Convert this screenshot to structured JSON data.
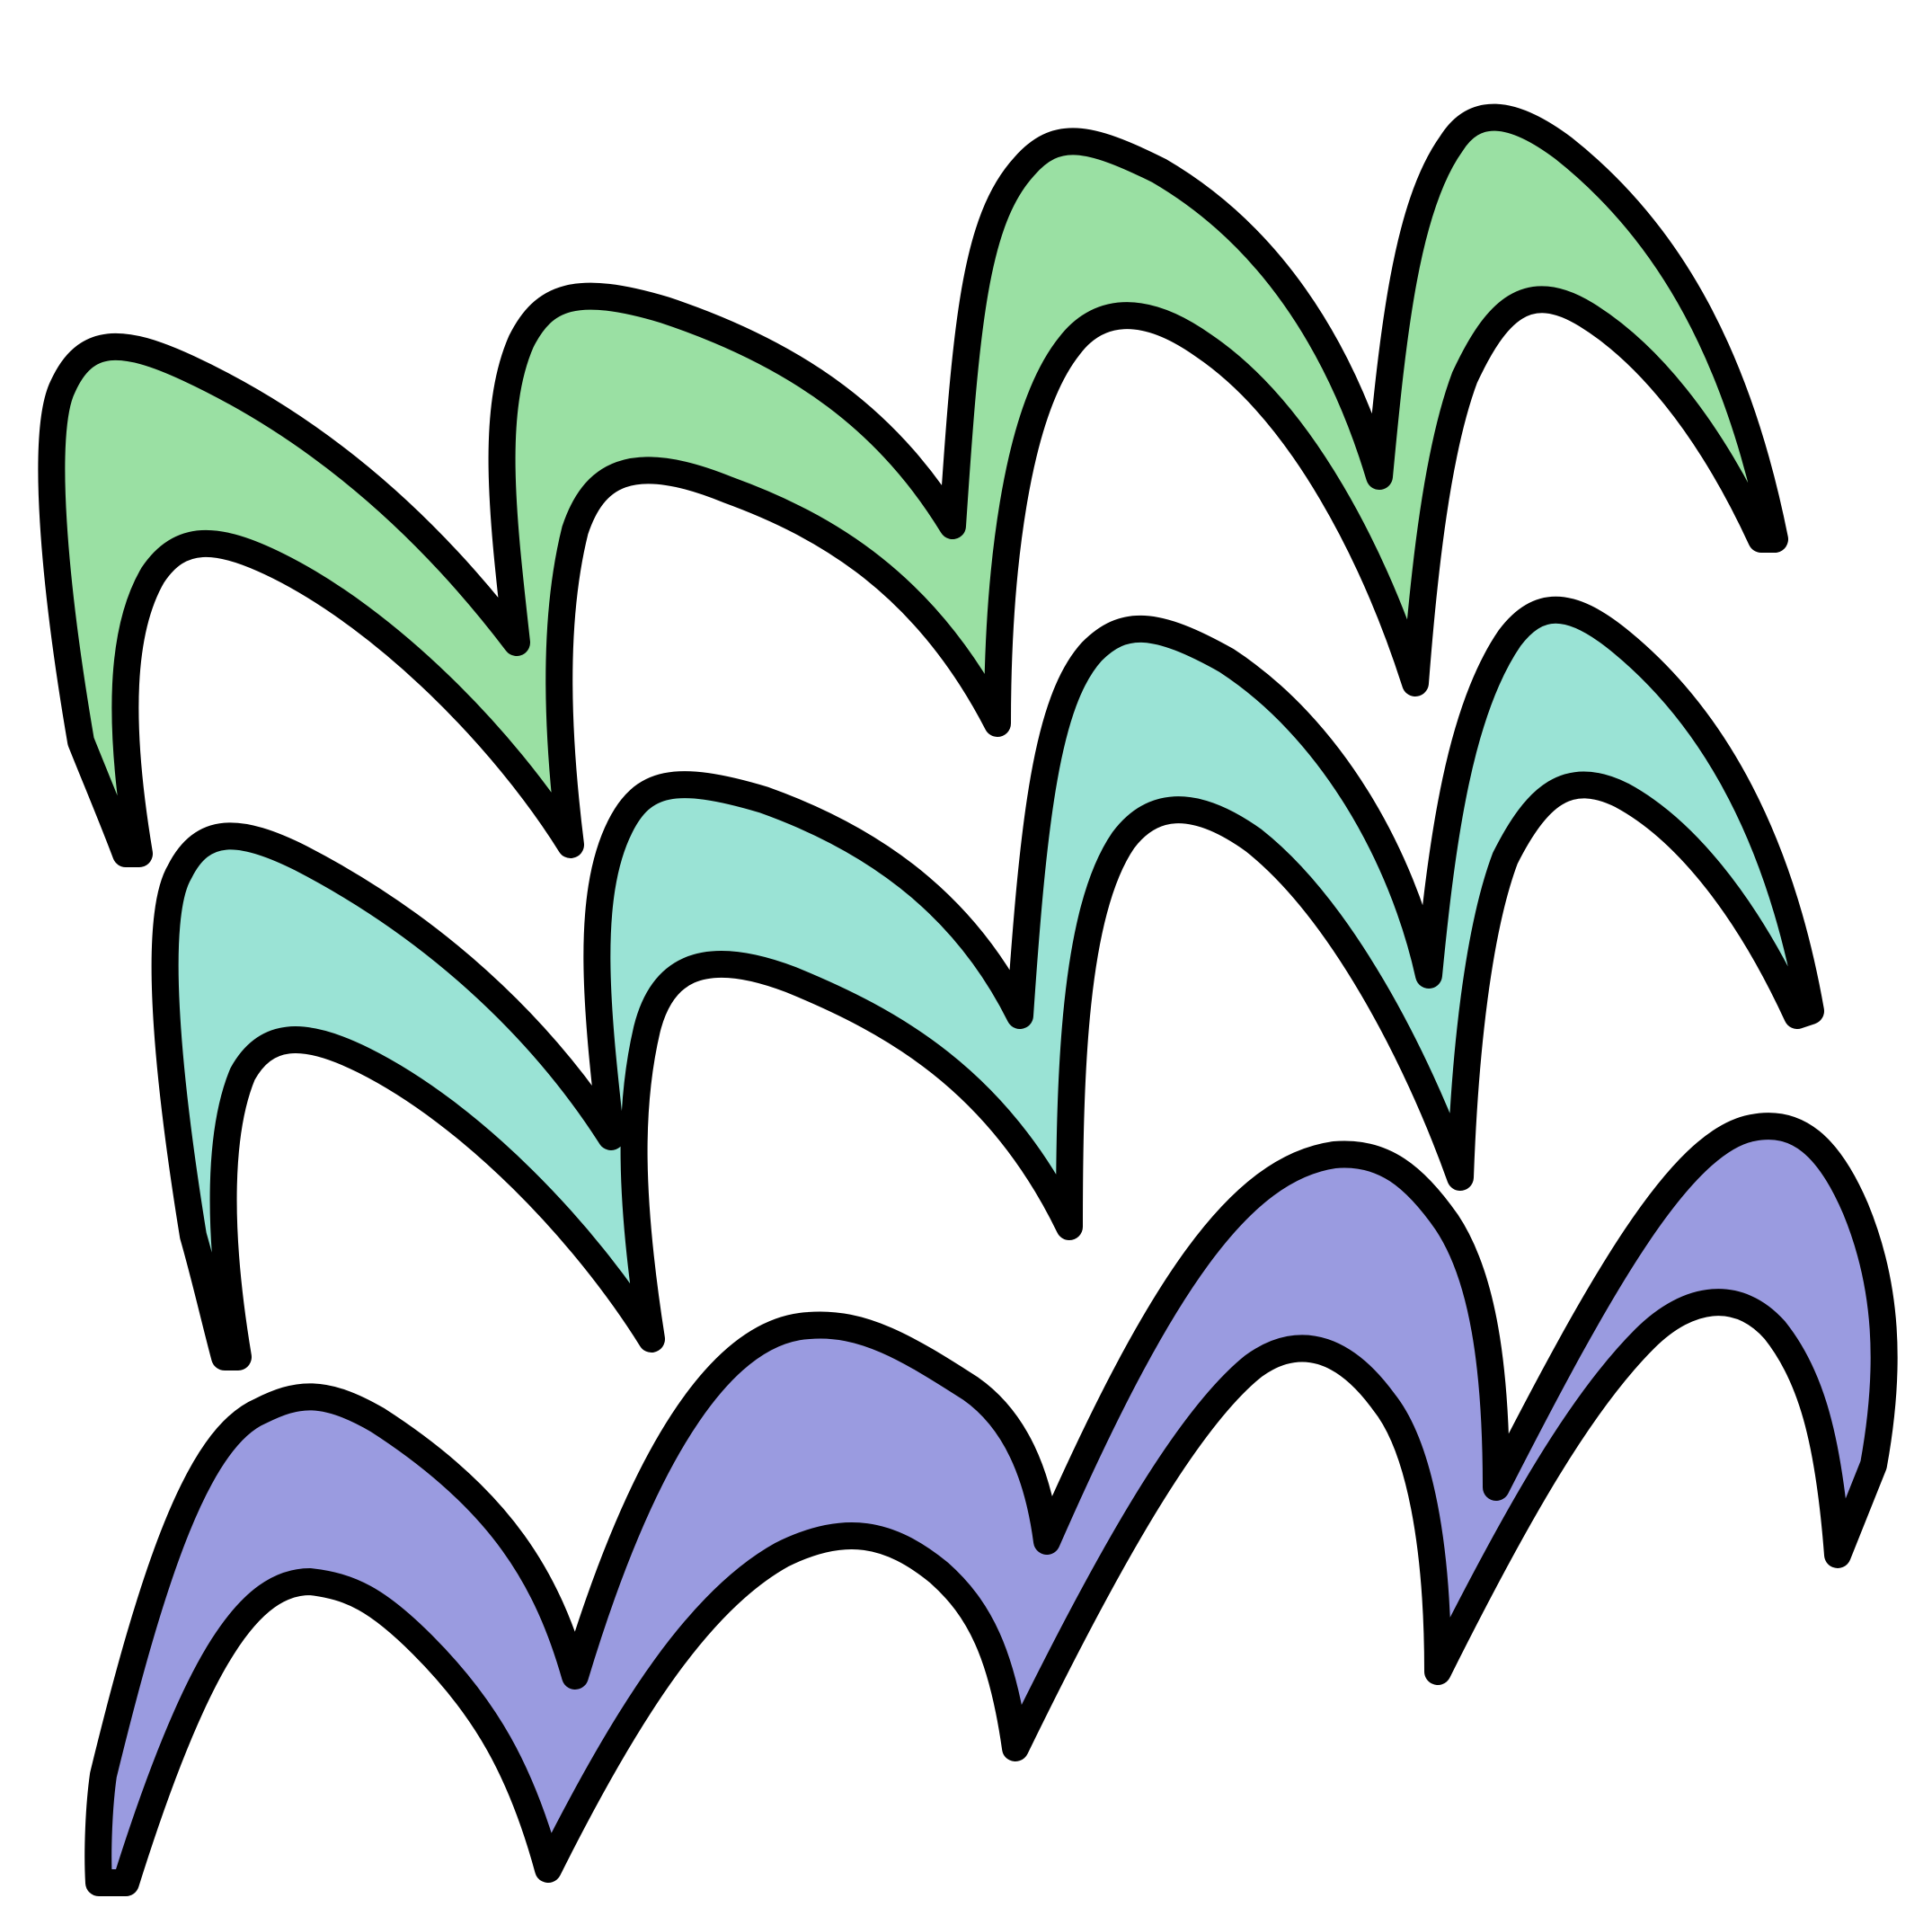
{
  "illustration": {
    "kind": "decorative-wave-pattern",
    "background": "#ffffff",
    "outline_color": "#000000",
    "bands": [
      {
        "name": "top-band",
        "fill": "#9ae0a3",
        "arch_count": 4
      },
      {
        "name": "middle-band",
        "fill": "#9ae3d5",
        "arch_count": 4
      },
      {
        "name": "bottom-band",
        "fill": "#9a9be0",
        "arch_count": 4
      }
    ]
  }
}
